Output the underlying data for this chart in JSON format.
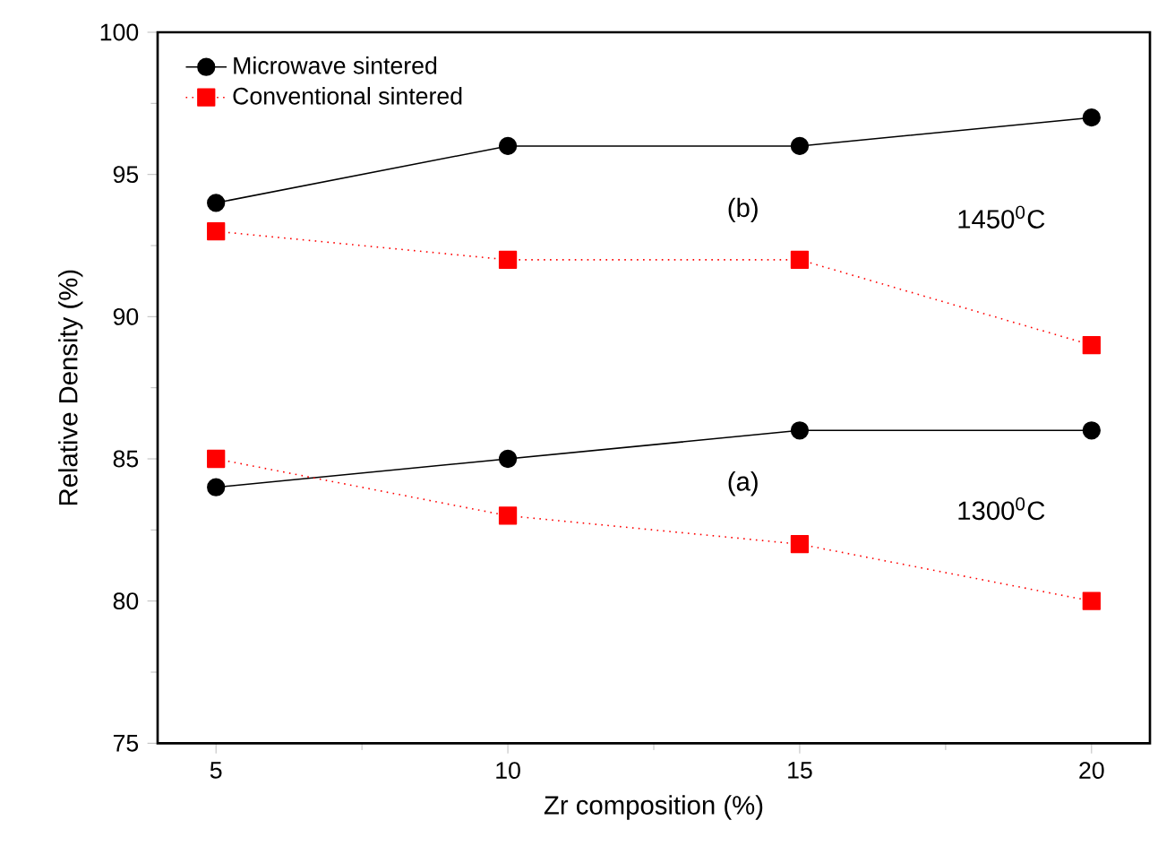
{
  "chart_data": {
    "type": "line",
    "xlabel": "Zr composition (%)",
    "ylabel": "Relative Density (%)",
    "x": [
      5,
      10,
      15,
      20
    ],
    "series": [
      {
        "name": "Microwave sintered",
        "color": "#000000",
        "marker": "circle",
        "line_style": "solid",
        "values": [
          94,
          96,
          96,
          97
        ]
      },
      {
        "name": "Conventional sintered",
        "color": "#ff0000",
        "marker": "square",
        "line_style": "dotted",
        "values": [
          93,
          92,
          92,
          89
        ]
      },
      {
        "color": "#000000",
        "marker": "circle",
        "line_style": "solid",
        "values": [
          84,
          85,
          86,
          86
        ]
      },
      {
        "color": "#ff0000",
        "marker": "square",
        "line_style": "dotted",
        "values": [
          85,
          83,
          82,
          80
        ]
      }
    ],
    "xlim": [
      4,
      21
    ],
    "ylim": [
      75,
      100
    ],
    "xticks": [
      5,
      10,
      15,
      20
    ],
    "yticks": [
      75,
      80,
      85,
      90,
      95,
      100
    ],
    "legend": "top left",
    "grid": false,
    "annotations": [
      "(b)",
      "1450$^{0}$C",
      "(a)",
      "1300$^{0}$C"
    ]
  }
}
